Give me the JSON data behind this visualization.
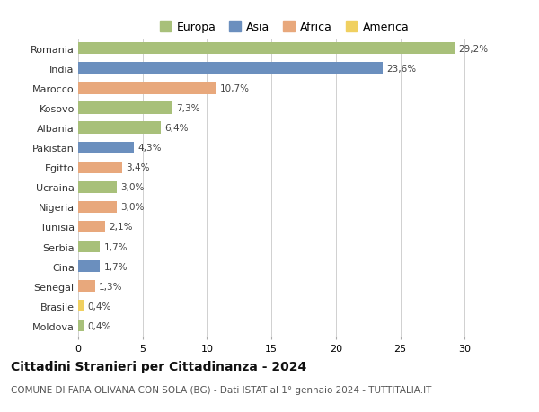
{
  "categories": [
    "Romania",
    "India",
    "Marocco",
    "Kosovo",
    "Albania",
    "Pakistan",
    "Egitto",
    "Ucraina",
    "Nigeria",
    "Tunisia",
    "Serbia",
    "Cina",
    "Senegal",
    "Brasile",
    "Moldova"
  ],
  "values": [
    29.2,
    23.6,
    10.7,
    7.3,
    6.4,
    4.3,
    3.4,
    3.0,
    3.0,
    2.1,
    1.7,
    1.7,
    1.3,
    0.4,
    0.4
  ],
  "labels": [
    "29,2%",
    "23,6%",
    "10,7%",
    "7,3%",
    "6,4%",
    "4,3%",
    "3,4%",
    "3,0%",
    "3,0%",
    "2,1%",
    "1,7%",
    "1,7%",
    "1,3%",
    "0,4%",
    "0,4%"
  ],
  "continents": [
    "Europa",
    "Asia",
    "Africa",
    "Europa",
    "Europa",
    "Asia",
    "Africa",
    "Europa",
    "Africa",
    "Africa",
    "Europa",
    "Asia",
    "Africa",
    "America",
    "Europa"
  ],
  "colors": {
    "Europa": "#a8c07a",
    "Asia": "#6b8fbe",
    "Africa": "#e8a87c",
    "America": "#f0d060"
  },
  "legend_order": [
    "Europa",
    "Asia",
    "Africa",
    "America"
  ],
  "xlim": [
    0,
    32
  ],
  "xticks": [
    0,
    5,
    10,
    15,
    20,
    25,
    30
  ],
  "title": "Cittadini Stranieri per Cittadinanza - 2024",
  "subtitle": "COMUNE DI FARA OLIVANA CON SOLA (BG) - Dati ISTAT al 1° gennaio 2024 - TUTTITALIA.IT",
  "bg_color": "#ffffff",
  "grid_color": "#d0d0d0",
  "bar_height": 0.6,
  "label_fontsize": 7.5,
  "title_fontsize": 10,
  "subtitle_fontsize": 7.5,
  "ytick_fontsize": 8,
  "legend_fontsize": 9
}
